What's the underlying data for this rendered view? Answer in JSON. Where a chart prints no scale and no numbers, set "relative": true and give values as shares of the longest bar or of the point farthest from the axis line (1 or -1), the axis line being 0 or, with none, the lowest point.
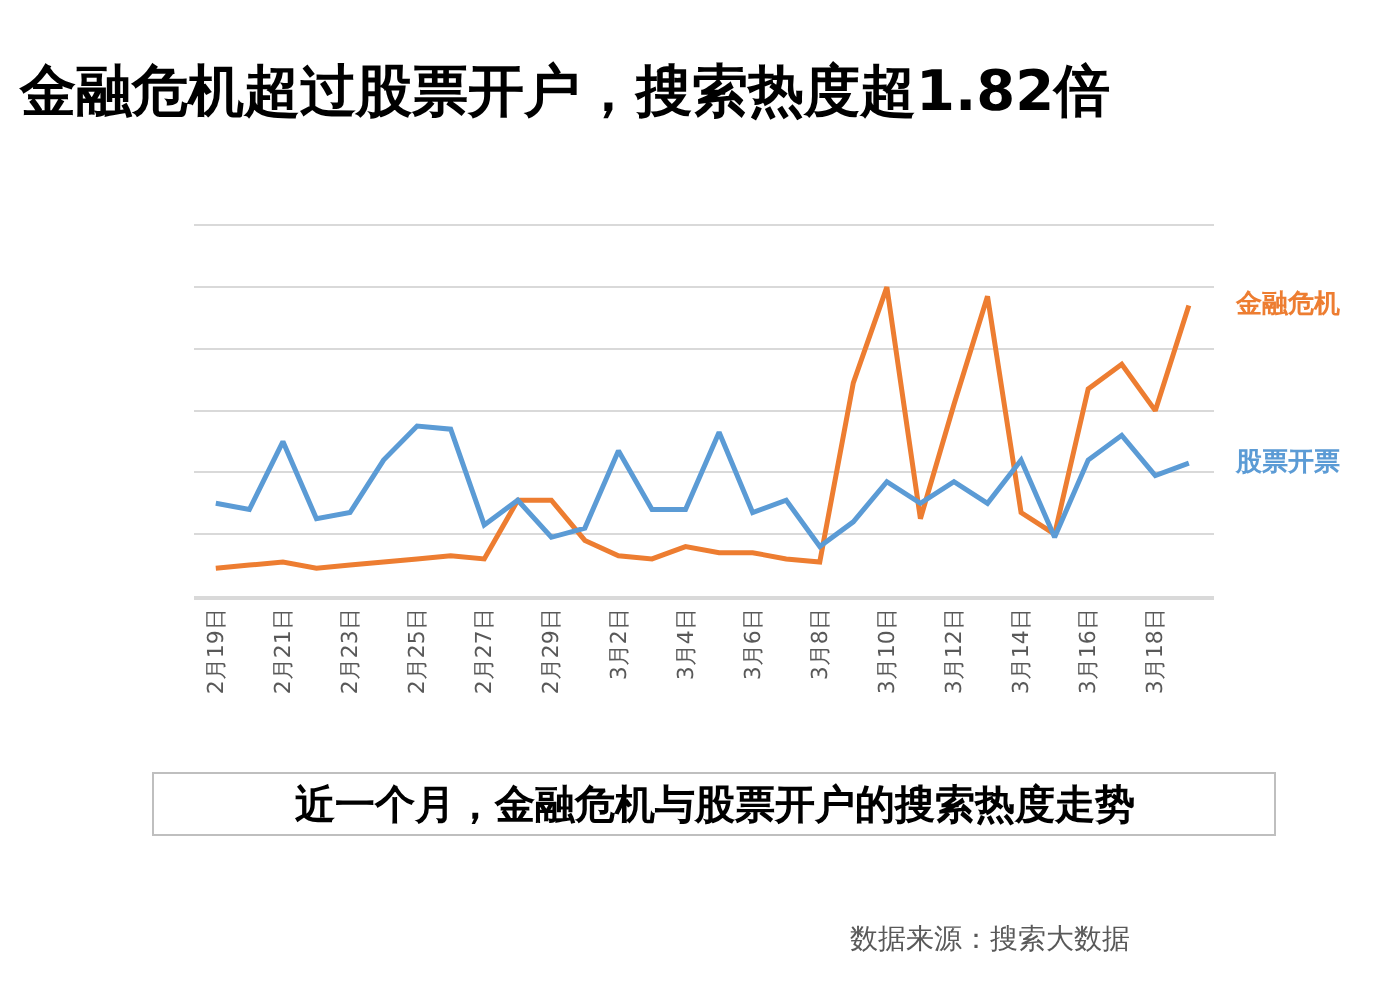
{
  "chart_data": {
    "type": "line",
    "title": "金融危机超过股票开户，搜索热度超1.82倍",
    "categories": [
      "2月19日",
      null,
      "2月21日",
      null,
      "2月23日",
      null,
      "2月25日",
      null,
      "2月27日",
      null,
      "2月29日",
      null,
      "3月2日",
      null,
      "3月4日",
      null,
      "3月6日",
      null,
      "3月8日",
      null,
      "3月10日",
      null,
      "3月12日",
      null,
      "3月14日",
      null,
      "3月16日",
      null,
      "3月18日",
      null
    ],
    "relative": true,
    "series": [
      {
        "name": "金融危机",
        "color": "#ed7d31",
        "values": [
          0.09,
          0.1,
          0.11,
          0.09,
          0.1,
          0.11,
          0.12,
          0.13,
          0.12,
          0.31,
          0.31,
          0.18,
          0.13,
          0.12,
          0.16,
          0.14,
          0.14,
          0.12,
          0.11,
          0.69,
          1,
          0.25,
          0.62,
          0.97,
          0.27,
          0.2,
          0.67,
          0.75,
          0.6,
          0.94
        ]
      },
      {
        "name": "股票开票",
        "color": "#5b9bd5",
        "values": [
          0.3,
          0.28,
          0.5,
          0.25,
          0.27,
          0.44,
          0.55,
          0.54,
          0.23,
          0.31,
          0.19,
          0.22,
          0.47,
          0.28,
          0.28,
          0.53,
          0.27,
          0.31,
          0.16,
          0.24,
          0.37,
          0.3,
          0.37,
          0.3,
          0.44,
          0.19,
          0.44,
          0.52,
          0.39,
          0.43
        ]
      }
    ],
    "annotations": [
      "近一个月，金融危机与股票开户的搜索热度走势",
      "数据来源：搜索大数据"
    ],
    "grid": "y"
  }
}
